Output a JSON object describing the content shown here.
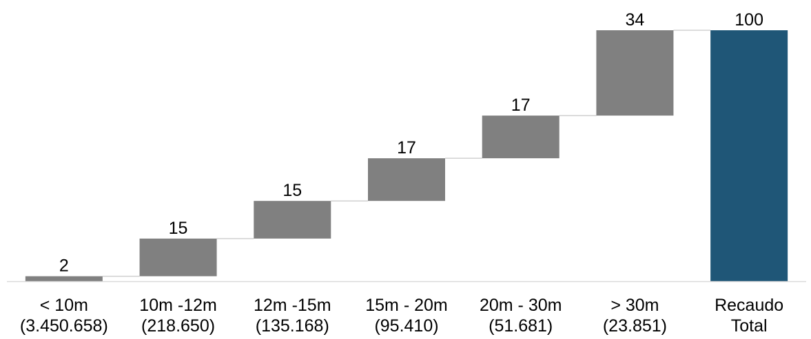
{
  "chart_data": {
    "type": "bar",
    "subtype": "waterfall",
    "categories": [
      [
        "< 10m",
        "(3.450.658)"
      ],
      [
        "10m -12m",
        "(218.650)"
      ],
      [
        "12m -15m",
        "(135.168)"
      ],
      [
        "15m - 20m",
        "(95.410)"
      ],
      [
        "20m - 30m",
        "(51.681)"
      ],
      [
        "> 30m",
        "(23.851)"
      ],
      [
        "Recaudo",
        "Total"
      ]
    ],
    "values": [
      2,
      15,
      15,
      17,
      17,
      34,
      100
    ],
    "data_labels": [
      "2",
      "15",
      "15",
      "17",
      "17",
      "34",
      "100"
    ],
    "is_total": [
      false,
      false,
      false,
      false,
      false,
      false,
      true
    ],
    "ylim": [
      0,
      100
    ],
    "title": "",
    "xlabel": "",
    "ylabel": "",
    "grid": false,
    "legend": "none",
    "colors": {
      "increment": "#808080",
      "total": "#1f5677",
      "connector": "#d0d0d0",
      "baseline": "#d9d9d9"
    }
  }
}
